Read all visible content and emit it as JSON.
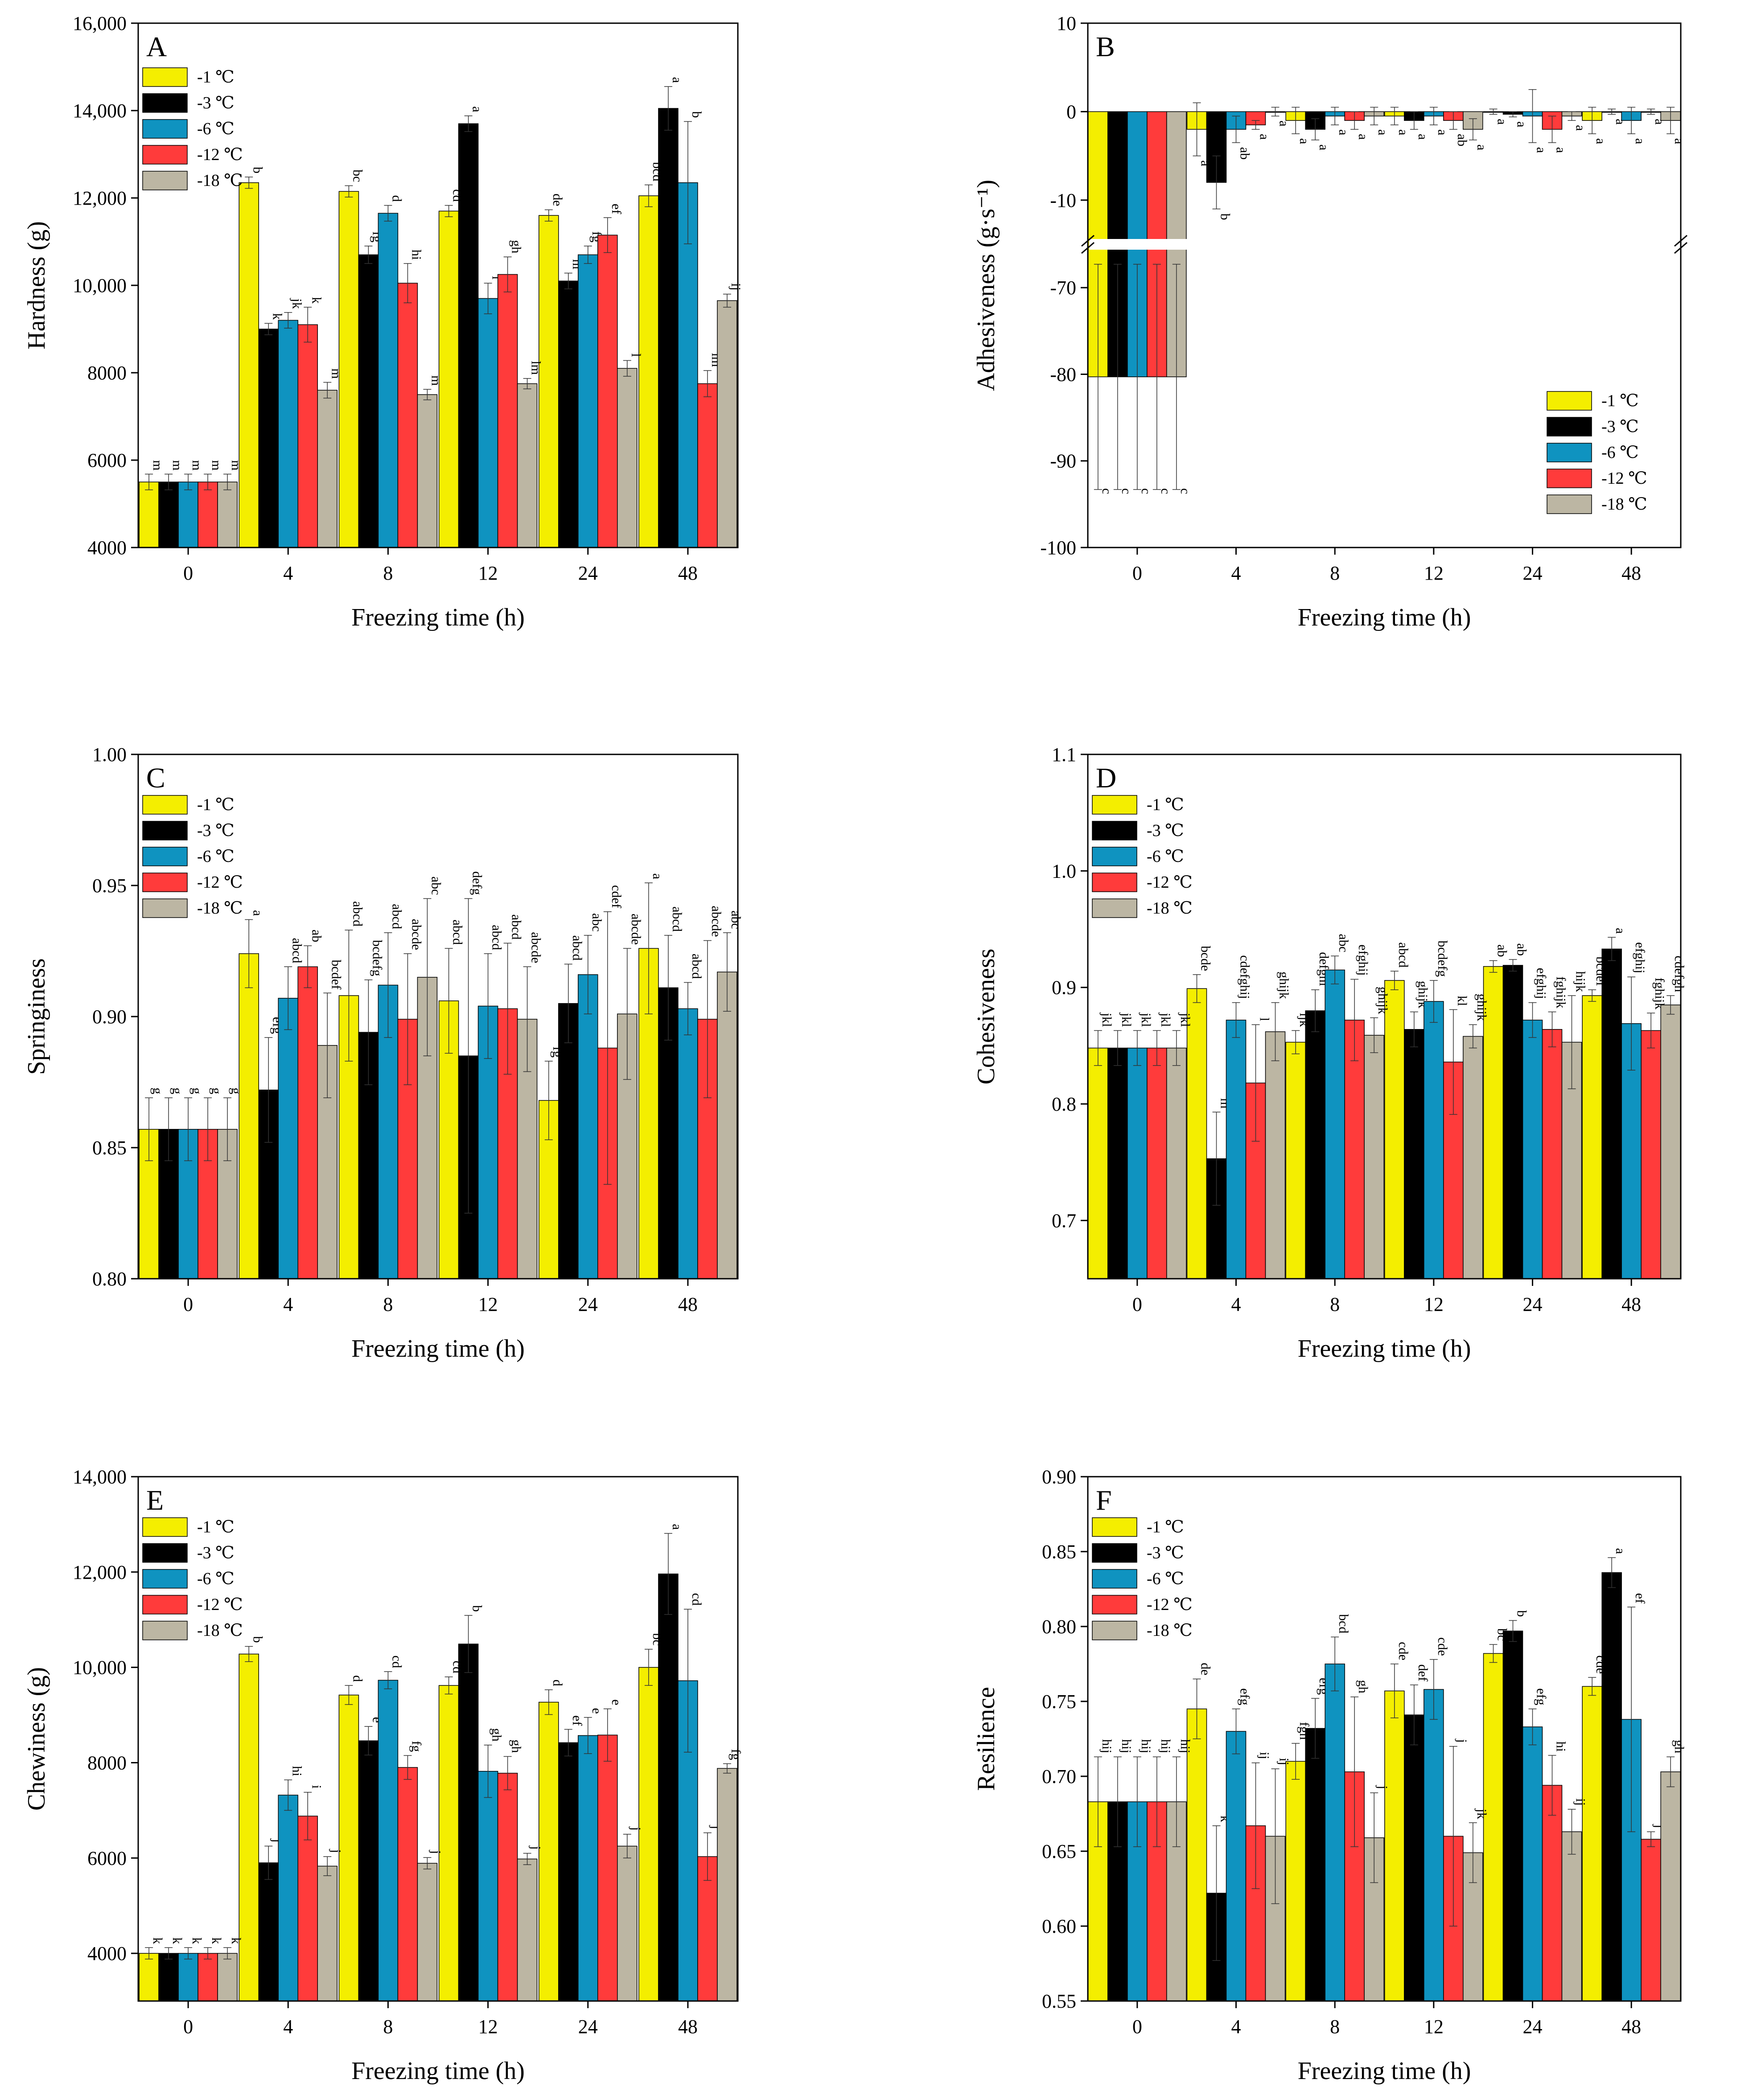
{
  "series_names": [
    "-1 ℃",
    "-3 ℃",
    "-6 ℃",
    "-12 ℃",
    "-18 ℃"
  ],
  "colors": [
    "#f4ee00",
    "#000000",
    "#0f93c0",
    "#ff3b3b",
    "#bcb6a3"
  ],
  "categories": [
    "0",
    "4",
    "8",
    "12",
    "24",
    "48"
  ],
  "chart_data": [
    {
      "type": "bar",
      "panel": "A",
      "title": "",
      "xlabel": "Freezing time (h)",
      "ylabel": "Hardness (g)",
      "ylim": [
        4000,
        16000
      ],
      "yticks": [
        4000,
        6000,
        8000,
        10000,
        12000,
        14000,
        16000
      ],
      "ytick_labels": [
        "4000",
        "6000",
        "8000",
        "10,000",
        "12,000",
        "14,000",
        "16,000"
      ],
      "legend": "top-left",
      "values": [
        [
          5500,
          12350,
          12150,
          11700,
          11600,
          12050
        ],
        [
          5500,
          9000,
          10700,
          13700,
          10100,
          14050
        ],
        [
          5500,
          9200,
          11650,
          9700,
          10700,
          12350
        ],
        [
          5500,
          9100,
          10050,
          10250,
          11150,
          7750
        ],
        [
          5500,
          7600,
          7500,
          7750,
          8100,
          9650
        ]
      ],
      "errors": [
        [
          180,
          130,
          130,
          130,
          130,
          250
        ],
        [
          180,
          130,
          200,
          180,
          180,
          500
        ],
        [
          180,
          180,
          180,
          350,
          200,
          1400
        ],
        [
          180,
          400,
          450,
          400,
          400,
          300
        ],
        [
          180,
          180,
          120,
          120,
          180,
          150
        ]
      ],
      "labels": [
        [
          "m",
          "b",
          "bc",
          "cd",
          "de",
          "bcd"
        ],
        [
          "m",
          "k",
          "fg",
          "a",
          "hi",
          "a"
        ],
        [
          "m",
          "jk",
          "d",
          "i",
          "fg",
          "b"
        ],
        [
          "m",
          "k",
          "hi",
          "gh",
          "ef",
          "lm"
        ],
        [
          "m",
          "m",
          "m",
          "lm",
          "l",
          "ij"
        ]
      ]
    },
    {
      "type": "bar",
      "panel": "B",
      "title": "",
      "xlabel": "Freezing time (h)",
      "ylabel": "Adhesiveness (g·s⁻¹)",
      "ylim": [
        -100,
        10
      ],
      "broken_axis": true,
      "yticks": [
        10,
        0,
        -10,
        -70,
        -80,
        -90,
        -100
      ],
      "ytick_labels": [
        "10",
        "0",
        "-10",
        "-70",
        "-80",
        "-90",
        "-100"
      ],
      "legend": "bottom-right",
      "values": [
        [
          -80.3,
          -2,
          -1,
          -0.5,
          0,
          -1
        ],
        [
          -80.3,
          -8,
          -2,
          -1,
          -0.3,
          0
        ],
        [
          -80.3,
          -2,
          -0.5,
          -0.5,
          -0.5,
          -1
        ],
        [
          -80.3,
          -1.5,
          -1,
          -1,
          -2,
          0
        ],
        [
          -80.3,
          0,
          -0.5,
          -2,
          -0.5,
          -1
        ]
      ],
      "errors": [
        [
          13,
          3,
          1.5,
          1,
          0.3,
          1.5
        ],
        [
          13,
          3,
          1.2,
          1,
          0.3,
          0.3
        ],
        [
          13,
          1.5,
          1,
          1,
          3,
          1.5
        ],
        [
          13,
          0.5,
          1,
          1,
          1.5,
          0.3
        ],
        [
          13,
          0.5,
          1,
          1.2,
          0.5,
          1.5
        ]
      ],
      "labels": [
        [
          "c",
          "a",
          "a",
          "a",
          "a",
          "a"
        ],
        [
          "c",
          "b",
          "a",
          "a",
          "a",
          "a"
        ],
        [
          "c",
          "ab",
          "a",
          "a",
          "a",
          "a"
        ],
        [
          "c",
          "a",
          "a",
          "ab",
          "a",
          "a"
        ],
        [
          "c",
          "a",
          "a",
          "a",
          "a",
          "a"
        ]
      ]
    },
    {
      "type": "bar",
      "panel": "C",
      "title": "",
      "xlabel": "Freezing time (h)",
      "ylabel": "Springiness",
      "ylim": [
        0.8,
        1.0
      ],
      "yticks": [
        0.8,
        0.85,
        0.9,
        0.95,
        1.0
      ],
      "ytick_labels": [
        "0.80",
        "0.85",
        "0.90",
        "0.95",
        "1.00"
      ],
      "legend": "top-left",
      "values": [
        [
          0.857,
          0.924,
          0.908,
          0.906,
          0.868,
          0.926
        ],
        [
          0.857,
          0.872,
          0.894,
          0.885,
          0.905,
          0.911
        ],
        [
          0.857,
          0.907,
          0.912,
          0.904,
          0.916,
          0.903
        ],
        [
          0.857,
          0.919,
          0.899,
          0.903,
          0.888,
          0.899
        ],
        [
          0.857,
          0.889,
          0.915,
          0.899,
          0.901,
          0.917
        ]
      ],
      "errors": [
        [
          0.012,
          0.013,
          0.025,
          0.02,
          0.015,
          0.025
        ],
        [
          0.012,
          0.02,
          0.02,
          0.06,
          0.015,
          0.02
        ],
        [
          0.012,
          0.012,
          0.02,
          0.02,
          0.015,
          0.01
        ],
        [
          0.012,
          0.008,
          0.025,
          0.025,
          0.052,
          0.03
        ],
        [
          0.012,
          0.02,
          0.03,
          0.02,
          0.025,
          0.015
        ]
      ],
      "labels": [
        [
          "g",
          "a",
          "abcd",
          "abcd",
          "fg",
          "a"
        ],
        [
          "g",
          "efg",
          "bcdefg",
          "defg",
          "abcd",
          "abcd"
        ],
        [
          "g",
          "abcd",
          "abcd",
          "abcd",
          "abc",
          "abcd"
        ],
        [
          "g",
          "ab",
          "abcde",
          "abcd",
          "cdef",
          "abcde"
        ],
        [
          "g",
          "bcdef",
          "abc",
          "abcde",
          "abcde",
          "abc"
        ]
      ]
    },
    {
      "type": "bar",
      "panel": "D",
      "title": "",
      "xlabel": "Freezing time (h)",
      "ylabel": "Cohesiveness",
      "ylim": [
        0.65,
        1.1
      ],
      "yticks": [
        0.7,
        0.8,
        0.9,
        1.0,
        1.1
      ],
      "ytick_labels": [
        "0.7",
        "0.8",
        "0.9",
        "1.0",
        "1.1"
      ],
      "legend": "top-left",
      "values": [
        [
          0.848,
          0.899,
          0.853,
          0.906,
          0.918,
          0.893
        ],
        [
          0.848,
          0.753,
          0.88,
          0.864,
          0.919,
          0.933
        ],
        [
          0.848,
          0.872,
          0.915,
          0.888,
          0.872,
          0.869
        ],
        [
          0.848,
          0.818,
          0.872,
          0.836,
          0.864,
          0.863
        ],
        [
          0.848,
          0.862,
          0.859,
          0.858,
          0.853,
          0.885
        ]
      ],
      "errors": [
        [
          0.015,
          0.012,
          0.01,
          0.008,
          0.005,
          0.005
        ],
        [
          0.015,
          0.04,
          0.018,
          0.015,
          0.005,
          0.01
        ],
        [
          0.015,
          0.015,
          0.012,
          0.018,
          0.015,
          0.04
        ],
        [
          0.015,
          0.05,
          0.035,
          0.045,
          0.015,
          0.015
        ],
        [
          0.015,
          0.025,
          0.015,
          0.01,
          0.04,
          0.008
        ]
      ],
      "labels": [
        [
          "jkl",
          "bcde",
          "ijk",
          "abcd",
          "ab",
          "bcdef"
        ],
        [
          "jkl",
          "m",
          "defghi",
          "ghijk",
          "ab",
          "a"
        ],
        [
          "jkl",
          "cdefghij",
          "abc",
          "bcdefg",
          "efghij",
          "efghij"
        ],
        [
          "jkl",
          "l",
          "efghij",
          "kl",
          "fghijk",
          "fghijk"
        ],
        [
          "jkl",
          "ghijk",
          "ghijk",
          "ghijk",
          "hijk",
          "cdefgh"
        ]
      ]
    },
    {
      "type": "bar",
      "panel": "E",
      "title": "",
      "xlabel": "Freezing time (h)",
      "ylabel": "Chewiness (g)",
      "ylim": [
        3000,
        14000
      ],
      "yticks": [
        4000,
        6000,
        8000,
        10000,
        12000,
        14000
      ],
      "ytick_labels": [
        "4000",
        "6000",
        "8000",
        "10,000",
        "12,000",
        "14,000"
      ],
      "legend": "top-left",
      "values": [
        [
          4000,
          10280,
          9420,
          9620,
          9270,
          10000
        ],
        [
          4000,
          5900,
          8460,
          10490,
          8420,
          11960
        ],
        [
          4000,
          7320,
          9730,
          7820,
          8570,
          9720
        ],
        [
          4000,
          6880,
          7900,
          7780,
          8580,
          6030
        ],
        [
          4000,
          5830,
          5890,
          5980,
          6250,
          7880
        ]
      ],
      "errors": [
        [
          120,
          160,
          200,
          180,
          260,
          380
        ],
        [
          120,
          350,
          300,
          600,
          280,
          850
        ],
        [
          120,
          320,
          180,
          550,
          380,
          1500
        ],
        [
          120,
          500,
          250,
          350,
          550,
          500
        ],
        [
          120,
          200,
          120,
          120,
          250,
          100
        ]
      ],
      "labels": [
        [
          "k",
          "b",
          "d",
          "cd",
          "d",
          "bc"
        ],
        [
          "k",
          "j",
          "e",
          "b",
          "ef",
          "a"
        ],
        [
          "k",
          "hi",
          "cd",
          "gh",
          "e",
          "cd"
        ],
        [
          "k",
          "i",
          "fg",
          "gh",
          "e",
          "j"
        ],
        [
          "k",
          "j",
          "j",
          "j",
          "j",
          "fg"
        ]
      ]
    },
    {
      "type": "bar",
      "panel": "F",
      "title": "",
      "xlabel": "Freezing time (h)",
      "ylabel": "Resilience",
      "ylim": [
        0.55,
        0.9
      ],
      "yticks": [
        0.55,
        0.6,
        0.65,
        0.7,
        0.75,
        0.8,
        0.85,
        0.9
      ],
      "ytick_labels": [
        "0.55",
        "0.60",
        "0.65",
        "0.70",
        "0.75",
        "0.80",
        "0.85",
        "0.90"
      ],
      "legend": "top-left",
      "values": [
        [
          0.683,
          0.745,
          0.71,
          0.757,
          0.782,
          0.76
        ],
        [
          0.683,
          0.622,
          0.732,
          0.741,
          0.797,
          0.836
        ],
        [
          0.683,
          0.73,
          0.775,
          0.758,
          0.733,
          0.738
        ],
        [
          0.683,
          0.667,
          0.703,
          0.66,
          0.694,
          0.658
        ],
        [
          0.683,
          0.66,
          0.659,
          0.649,
          0.663,
          0.703
        ]
      ],
      "errors": [
        [
          0.03,
          0.02,
          0.012,
          0.018,
          0.006,
          0.006
        ],
        [
          0.03,
          0.045,
          0.02,
          0.02,
          0.007,
          0.01
        ],
        [
          0.03,
          0.015,
          0.018,
          0.02,
          0.012,
          0.075
        ],
        [
          0.03,
          0.042,
          0.05,
          0.06,
          0.02,
          0.005
        ],
        [
          0.03,
          0.045,
          0.03,
          0.02,
          0.015,
          0.01
        ]
      ],
      "labels": [
        [
          "hij",
          "de",
          "fgh",
          "cde",
          "bc",
          "cde"
        ],
        [
          "hij",
          "k",
          "efg",
          "def",
          "b",
          "a"
        ],
        [
          "hij",
          "efg",
          "bcd",
          "cde",
          "efg",
          "ef"
        ],
        [
          "hij",
          "ij",
          "gh",
          "j",
          "hi",
          "j"
        ],
        [
          "hij",
          "ij",
          "j",
          "jk",
          "ij",
          "gh"
        ]
      ]
    }
  ]
}
